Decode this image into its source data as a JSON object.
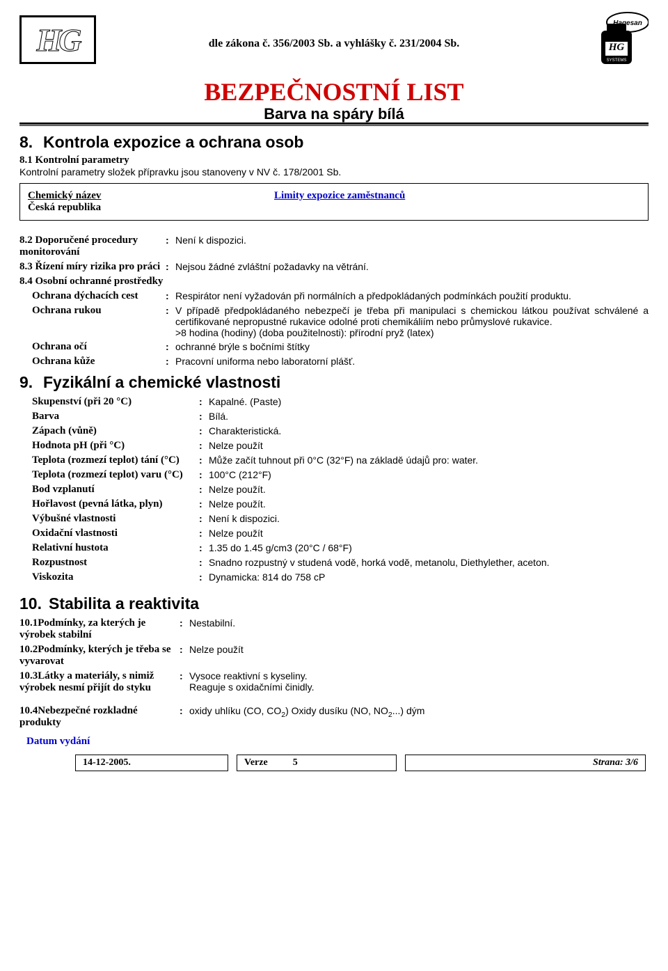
{
  "header": {
    "law_line": "dle zákona č. 356/2003 Sb. a vyhlášky č. 231/2004 Sb.",
    "title": "BEZPEČNOSTNÍ LIST",
    "subtitle": "Barva na spáry bílá",
    "hg_text": "HG"
  },
  "sec8": {
    "num": "8.",
    "title": "Kontrola expozice a ochrana osob",
    "s81_num": "8.1",
    "s81_label": "Kontrolní parametry",
    "s81_text": "Kontrolní parametry složek přípravku jsou stanoveny v NV č. 178/2001 Sb.",
    "limits_left1": "Chemický název",
    "limits_left2": "Česká republika",
    "limits_right": "Limity expozice zaměstnanců",
    "s82_label": "8.2 Doporučené procedury monitorování",
    "s82_val": "Není k dispozici.",
    "s83_label": "8.3 Řízení míry rizika pro práci",
    "s83_val": "Nejsou žádné zvláštní požadavky na větrání.",
    "s84_label": "8.4 Osobní ochranné prostředky",
    "resp_label": "Ochrana dýchacích cest",
    "resp_val": "Respirátor není vyžadován při normálních a předpokládaných podmínkách použití produktu.",
    "hand_label": "Ochrana rukou",
    "hand_val": "V případě předpokládaného nebezpečí je třeba při manipulaci s chemickou látkou používat schválené a certifikované nepropustné rukavice odolné proti chemikáliím nebo průmyslové rukavice.",
    "hand_val2": ">8 hodina (hodiny) (doba použitelnosti): přírodní pryž (latex)",
    "eye_label": "Ochrana očí",
    "eye_val": "ochranné brýle s bočními štítky",
    "skin_label": "Ochrana kůže",
    "skin_val": "Pracovní uniforma nebo laboratorní plášť."
  },
  "sec9": {
    "num": "9.",
    "title": "Fyzikální a chemické vlastnosti",
    "rows": [
      {
        "label": "Skupenství (při 20 °C)",
        "val": "Kapalné. (Paste)"
      },
      {
        "label": "Barva",
        "val": "Bílá."
      },
      {
        "label": "Zápach (vůně)",
        "val": "Charakteristická."
      },
      {
        "label": "Hodnota pH (při °C)",
        "val": "Nelze použít"
      },
      {
        "label": "Teplota (rozmezí teplot) tání (°C)",
        "val": "Může začít tuhnout při 0°C (32°F) na základě údajů pro: water."
      },
      {
        "label": "Teplota (rozmezí teplot) varu (°C)",
        "val": "100°C (212°F)"
      },
      {
        "label": "Bod vzplanutí",
        "val": "Nelze použít."
      },
      {
        "label": "Hořlavost (pevná látka, plyn)",
        "val": "Nelze použít."
      },
      {
        "label": "Výbušné vlastnosti",
        "val": "Není k dispozici."
      },
      {
        "label": "Oxidační vlastnosti",
        "val": "Nelze použít"
      },
      {
        "label": "Relativní hustota",
        "val": "1.35 do 1.45 g/cm3 (20°C / 68°F)"
      },
      {
        "label": "Rozpustnost",
        "val": "Snadno rozpustný v studená vodě, horká vodě, metanolu, Diethylether, aceton."
      },
      {
        "label": "Viskozita",
        "val": "Dynamicka: 814 do 758 cP"
      }
    ]
  },
  "sec10": {
    "num": "10.",
    "title": "Stabilita a reaktivita",
    "r1_label": "10.1Podmínky, za kterých je výrobek stabilní",
    "r1_val": "Nestabilní.",
    "r2_label": "10.2Podmínky, kterých je třeba se vyvarovat",
    "r2_val": "Nelze použít",
    "r3_label": "10.3Látky a materiály, s nimiž výrobek nesmí přijít do styku",
    "r3_val1": "Vysoce reaktivní s kyseliny.",
    "r3_val2": "Reaguje s oxidačními činidly.",
    "r4_label": "10.4Nebezpečné rozkladné produkty"
  },
  "footer": {
    "date_label": "Datum vydání",
    "date": "14-12-2005.",
    "version_label": "Verze",
    "version": "5",
    "page_label": "Strana:",
    "page": "3/6"
  }
}
